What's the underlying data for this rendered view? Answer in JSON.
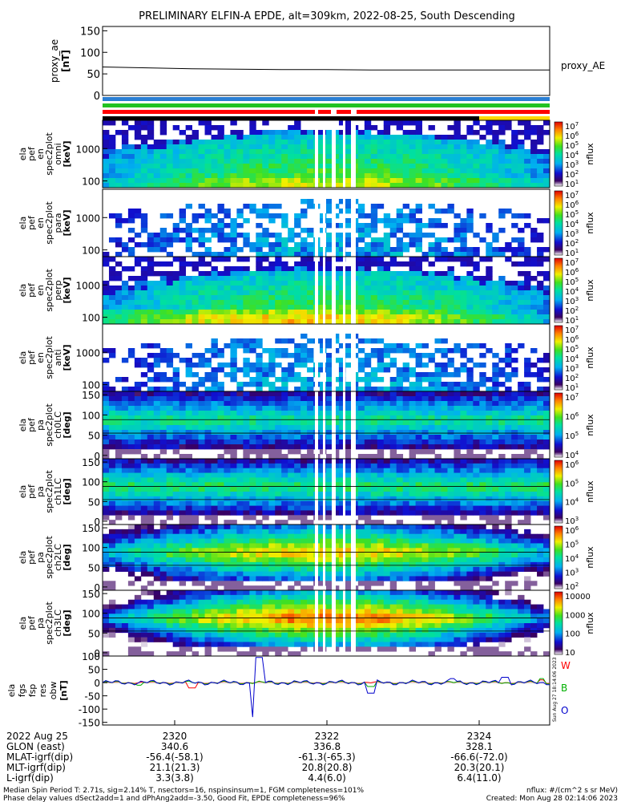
{
  "title": "PRELIMINARY ELFIN-A EPDE, alt=309km, 2022-08-25, South Descending",
  "colors": {
    "status_blue": "#2a7fd4",
    "status_green": "#22c222",
    "status_red": "#ff0000",
    "status_yellow": "#ffd700",
    "ae_line": "#000000",
    "fgm_w": "#ff0000",
    "fgm_b": "#00b000",
    "fgm_o": "#0000cc"
  },
  "chart_data": [
    {
      "type": "line",
      "panel": "proxy_ae",
      "ylabel": [
        "proxy_ae",
        "[nT]"
      ],
      "ylim": [
        0,
        160
      ],
      "yticks": [
        "150",
        "100",
        "50",
        "0"
      ],
      "legend": "proxy_AE",
      "x": [
        0,
        0.1,
        0.2,
        0.3,
        0.4,
        0.5,
        0.6,
        0.7,
        0.8,
        0.9,
        1.0
      ],
      "values": [
        66,
        64,
        62,
        61,
        60,
        60,
        59,
        59,
        59,
        59,
        59
      ]
    },
    {
      "type": "heatmap",
      "panel": "spec_omni",
      "ylabel": [
        "ela",
        "pef",
        "en",
        "spec2plot",
        "omni",
        "[keV]"
      ],
      "yticks": [
        "1000",
        "100"
      ],
      "zlabel": "nflux",
      "zticks": [
        "10^7",
        "10^6",
        "10^5",
        "10^4",
        "10^3",
        "10^2",
        "10^1"
      ]
    },
    {
      "type": "heatmap",
      "panel": "spec_para",
      "ylabel": [
        "ela",
        "pef",
        "en",
        "spec2plot",
        "para",
        "[keV]"
      ],
      "yticks": [
        "1000",
        "100"
      ],
      "zlabel": "nflux",
      "zticks": [
        "10^7",
        "10^6",
        "10^5",
        "10^4",
        "10^3",
        "10^2",
        "10^1"
      ]
    },
    {
      "type": "heatmap",
      "panel": "spec_perp",
      "ylabel": [
        "ela",
        "pef",
        "en",
        "spec2plot",
        "perp",
        "[keV]"
      ],
      "yticks": [
        "1000",
        "100"
      ],
      "zlabel": "nflux",
      "zticks": [
        "10^7",
        "10^6",
        "10^5",
        "10^4",
        "10^3",
        "10^2",
        "10^1"
      ]
    },
    {
      "type": "heatmap",
      "panel": "spec_anti",
      "ylabel": [
        "ela",
        "pef",
        "en",
        "spec2plot",
        "anti",
        "[keV]"
      ],
      "yticks": [
        "1000",
        "100"
      ],
      "zlabel": "nflux",
      "zticks": [
        "10^7",
        "10^6",
        "10^5",
        "10^4",
        "10^3",
        "10^2",
        "10^1"
      ]
    },
    {
      "type": "heatmap",
      "panel": "pa_ch0",
      "ylabel": [
        "ela",
        "pef",
        "pa",
        "spec2plot",
        "ch0LC",
        "[deg]"
      ],
      "yticks": [
        "150",
        "100",
        "50",
        "0"
      ],
      "zlabel": "nflux",
      "zticks": [
        "10^7",
        "10^6",
        "10^5",
        "10^4"
      ]
    },
    {
      "type": "heatmap",
      "panel": "pa_ch1",
      "ylabel": [
        "ela",
        "pef",
        "pa",
        "spec2plot",
        "ch1LC",
        "[deg]"
      ],
      "yticks": [
        "150",
        "100",
        "50",
        "0"
      ],
      "zlabel": "nflux",
      "zticks": [
        "10^6",
        "10^5",
        "10^4",
        "10^3"
      ]
    },
    {
      "type": "heatmap",
      "panel": "pa_ch2",
      "ylabel": [
        "ela",
        "pef",
        "pa",
        "spec2plot",
        "ch2LC",
        "[deg]"
      ],
      "yticks": [
        "150",
        "100",
        "50",
        "0"
      ],
      "zlabel": "nflux",
      "zticks": [
        "10^6",
        "10^5",
        "10^4",
        "10^3",
        "10^2"
      ]
    },
    {
      "type": "heatmap",
      "panel": "pa_ch3",
      "ylabel": [
        "ela",
        "pef",
        "pa",
        "spec2plot",
        "ch3LC",
        "[deg]"
      ],
      "yticks": [
        "150",
        "100",
        "50",
        "0"
      ],
      "zlabel": "nflux",
      "zticks": [
        "10000",
        "1000",
        "100",
        "10"
      ]
    },
    {
      "type": "line",
      "panel": "fgs",
      "ylabel": [
        "ela",
        "fgs",
        "fsp",
        "res",
        "obw",
        "[nT]"
      ],
      "ylim": [
        -160,
        100
      ],
      "yticks": [
        "100",
        "50",
        "0",
        "-50",
        "-100",
        "-150"
      ],
      "series": [
        {
          "name": "W",
          "color": "#ff0000"
        },
        {
          "name": "B",
          "color": "#00b000"
        },
        {
          "name": "O",
          "color": "#0000cc"
        }
      ],
      "xticks": [
        "2320",
        "2322",
        "2324"
      ]
    }
  ],
  "time_label": "Sun Aug 27 18:14:06 2023",
  "orbit_table": {
    "rows": [
      {
        "label": "2022 Aug 25",
        "values": [
          "2320",
          "2322",
          "2324"
        ]
      },
      {
        "label": "GLON (east)",
        "values": [
          "340.6",
          "336.8",
          "328.1"
        ]
      },
      {
        "label": "MLAT-igrf(dip)",
        "values": [
          "-56.4(-58.1)",
          "-61.3(-65.3)",
          "-66.6(-72.0)"
        ]
      },
      {
        "label": "MLT-igrf(dip)",
        "values": [
          "21.1(21.3)",
          "20.8(20.8)",
          "20.3(20.1)"
        ]
      },
      {
        "label": "L-igrf(dip)",
        "values": [
          "3.3(3.8)",
          "4.4(6.0)",
          "6.4(11.0)"
        ]
      }
    ]
  },
  "footer": {
    "line1_left": "Median Spin Period T: 2.71s, sig=2.14% T, nsectors=16, nspinsinsum=1, FGM completeness=101%",
    "line1_right": "nflux: #/(cm^2 s sr MeV)",
    "line2_left": "Phase delay values dSect2add=1 and dPhAng2add=-3.50, Good Fit, EPDE completeness=96%",
    "line2_right": "Created: Mon Aug 28 02:14:06 2023"
  }
}
